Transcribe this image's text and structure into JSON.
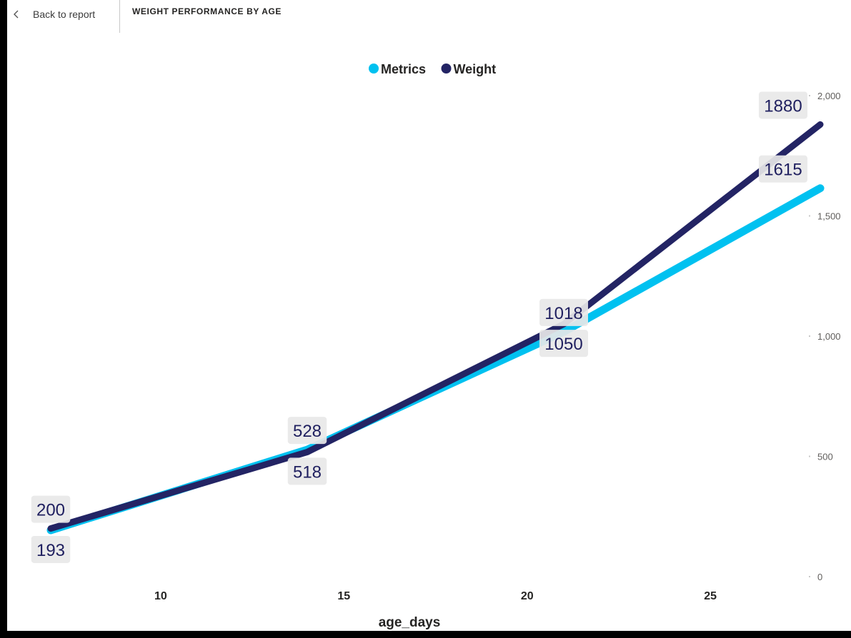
{
  "header": {
    "back_label": "Back to report",
    "visual_title": "WEIGHT PERFORMANCE BY AGE"
  },
  "chart_data": {
    "type": "line",
    "title": "WEIGHT PERFORMANCE BY AGE",
    "xlabel": "age_days",
    "ylabel": "",
    "x": [
      7,
      14,
      21,
      28
    ],
    "xlim": [
      7,
      28
    ],
    "ylim": [
      0,
      2000
    ],
    "x_ticks": [
      10,
      15,
      20,
      25
    ],
    "y_ticks": [
      0,
      500,
      1000,
      1500,
      2000
    ],
    "y_tick_labels": [
      "0",
      "500",
      "1,000",
      "1,500",
      "2,000"
    ],
    "y_axis_position": "right",
    "grid": false,
    "legend_position": "top-center",
    "series": [
      {
        "name": "Metrics",
        "color": "#00c1f0",
        "values": [
          193,
          528,
          1018,
          1615
        ]
      },
      {
        "name": "Weight",
        "color": "#232464",
        "values": [
          200,
          518,
          1050,
          1880
        ]
      }
    ],
    "data_labels": [
      {
        "text": "200",
        "series": "Weight",
        "x": 7,
        "placement": "above"
      },
      {
        "text": "193",
        "series": "Metrics",
        "x": 7,
        "placement": "below"
      },
      {
        "text": "528",
        "series": "Metrics",
        "x": 14,
        "placement": "above"
      },
      {
        "text": "518",
        "series": "Weight",
        "x": 14,
        "placement": "below"
      },
      {
        "text": "1018",
        "series": "Metrics",
        "x": 21,
        "placement": "above"
      },
      {
        "text": "1050",
        "series": "Weight",
        "x": 21,
        "placement": "below"
      },
      {
        "text": "1880",
        "series": "Weight",
        "x": 28,
        "placement": "above"
      },
      {
        "text": "1615",
        "series": "Metrics",
        "x": 28,
        "placement": "above"
      }
    ]
  }
}
